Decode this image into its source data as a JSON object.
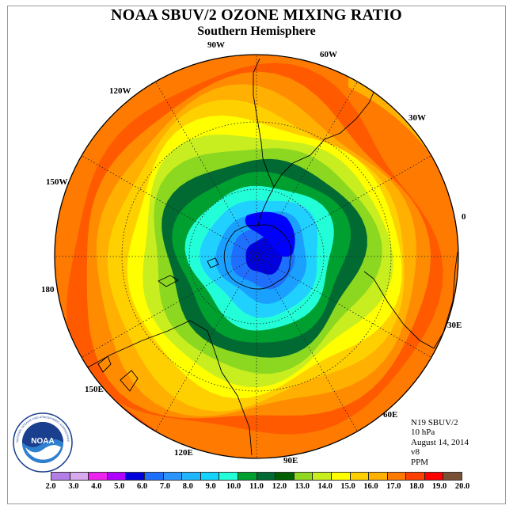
{
  "header": {
    "title": "NOAA SBUV/2 OZONE MIXING RATIO",
    "subtitle": "Southern Hemisphere"
  },
  "map": {
    "projection": "south-polar-stereographic",
    "longitude_labels": [
      {
        "id": "90w",
        "text": "90W"
      },
      {
        "id": "60w",
        "text": "60W"
      },
      {
        "id": "30w",
        "text": "30W"
      },
      {
        "id": "0",
        "text": "0"
      },
      {
        "id": "30e",
        "text": "30E"
      },
      {
        "id": "60e",
        "text": "60E"
      },
      {
        "id": "90e",
        "text": "90E"
      },
      {
        "id": "120e",
        "text": "120E"
      },
      {
        "id": "150e",
        "text": "150E"
      },
      {
        "id": "180",
        "text": "180"
      },
      {
        "id": "150w",
        "text": "150W"
      },
      {
        "id": "120w",
        "text": "120W"
      }
    ],
    "field_levels_ppm": [
      18.5,
      17.5,
      16.5,
      15.5,
      14.5,
      13.5,
      12.5,
      11.5,
      10.5,
      9.5,
      8.5,
      7.5,
      6.5,
      5.5
    ],
    "minimum_ppm": 5.5
  },
  "info": {
    "satellite": "N19 SBUV/2",
    "pressure": "10 hPa",
    "date": "August 14, 2014",
    "version": "v8",
    "units": "PPM"
  },
  "colorbar": {
    "colors": [
      "#b37fe6",
      "#d9a9f0",
      "#ee22ee",
      "#b000ff",
      "#0000dd",
      "#1f6fff",
      "#2b95ff",
      "#20b5ff",
      "#14d4ff",
      "#22ffd8",
      "#00a030",
      "#006a32",
      "#006000",
      "#90d820",
      "#c8ee20",
      "#ffff00",
      "#ffd000",
      "#ffb000",
      "#ff7a00",
      "#ff4000",
      "#ff0000",
      "#7a5035"
    ],
    "ticks": [
      "2.0",
      "3.0",
      "4.0",
      "5.0",
      "6.0",
      "7.0",
      "8.0",
      "9.0",
      "10.0",
      "11.0",
      "12.0",
      "13.0",
      "14.0",
      "15.0",
      "16.0",
      "17.0",
      "18.0",
      "19.0",
      "20.0"
    ]
  },
  "logo": {
    "text": "NOAA",
    "ring_text": "NATIONAL OCEANIC AND ATMOSPHERIC ADMINISTRATION · U.S. DEPARTMENT OF COMMERCE"
  }
}
